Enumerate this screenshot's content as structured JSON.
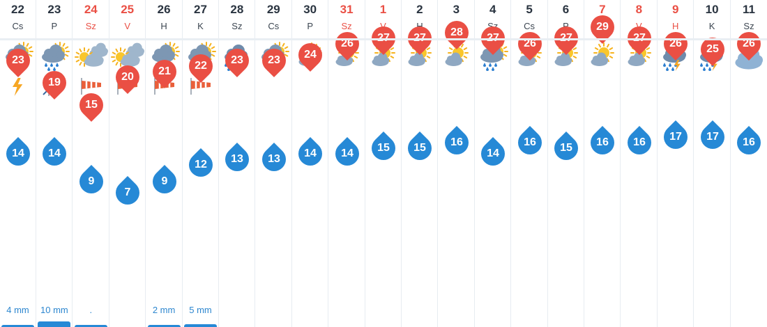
{
  "colors": {
    "weekend": "#ea4f44",
    "max_pin": "#ea4f44",
    "min_pin": "#2689d6",
    "precip_text": "#2c86cf"
  },
  "days": [
    {
      "date": "22",
      "dow": "Cs",
      "weekend": false,
      "icon": "thunderstorm-icon",
      "extra": "lightning-icon",
      "max": "23",
      "min": "14",
      "precip": "4 mm",
      "precip_level": 0.15
    },
    {
      "date": "23",
      "dow": "P",
      "weekend": false,
      "icon": "thunderstorm-icon",
      "extra": "strong-wind-icon",
      "max": "19",
      "min": "14",
      "precip": "10 mm",
      "precip_level": 0.4
    },
    {
      "date": "24",
      "dow": "Sz",
      "weekend": true,
      "icon": "partly-cloudy-icon",
      "extra": "windsock-icon",
      "max": "15",
      "min": "9",
      "precip": ".",
      "precip_level": 0.04
    },
    {
      "date": "25",
      "dow": "V",
      "weekend": true,
      "icon": "partly-cloudy-icon",
      "extra": "windsock-icon",
      "max": "20",
      "min": "7",
      "precip": "",
      "precip_level": 0
    },
    {
      "date": "26",
      "dow": "H",
      "weekend": false,
      "icon": "rain-shower-icon",
      "extra": "windsock-icon",
      "max": "21",
      "min": "9",
      "precip": "2 mm",
      "precip_level": 0.1
    },
    {
      "date": "27",
      "dow": "K",
      "weekend": false,
      "icon": "rain-shower-icon",
      "extra": "windsock-icon",
      "max": "22",
      "min": "12",
      "precip": "5 mm",
      "precip_level": 0.2
    },
    {
      "date": "28",
      "dow": "Sz",
      "weekend": false,
      "icon": "thunder-cloud-icon",
      "extra": "",
      "max": "23",
      "min": "13",
      "precip": "",
      "precip_level": 0
    },
    {
      "date": "29",
      "dow": "Cs",
      "weekend": false,
      "icon": "rain-shower-icon",
      "extra": "",
      "max": "23",
      "min": "13",
      "precip": "",
      "precip_level": 0
    },
    {
      "date": "30",
      "dow": "P",
      "weekend": false,
      "icon": "sunny-cloud-icon",
      "extra": "",
      "max": "24",
      "min": "14",
      "precip": "",
      "precip_level": 0
    },
    {
      "date": "31",
      "dow": "Sz",
      "weekend": true,
      "icon": "sunny-cloud-icon",
      "extra": "",
      "max": "26",
      "min": "14",
      "precip": "",
      "precip_level": 0
    },
    {
      "date": "1",
      "dow": "V",
      "weekend": true,
      "icon": "sunny-cloud-icon",
      "extra": "",
      "max": "27",
      "min": "15",
      "precip": "",
      "precip_level": 0
    },
    {
      "date": "2",
      "dow": "H",
      "weekend": false,
      "icon": "sunny-cloud-icon",
      "extra": "",
      "max": "27",
      "min": "15",
      "precip": "",
      "precip_level": 0
    },
    {
      "date": "3",
      "dow": "K",
      "weekend": false,
      "icon": "sunny-cloud-icon",
      "extra": "",
      "max": "28",
      "min": "16",
      "precip": "",
      "precip_level": 0
    },
    {
      "date": "4",
      "dow": "Sz",
      "weekend": false,
      "icon": "rain-shower-icon",
      "extra": "",
      "max": "27",
      "min": "14",
      "precip": "",
      "precip_level": 0
    },
    {
      "date": "5",
      "dow": "Cs",
      "weekend": false,
      "icon": "sunny-cloud-icon",
      "extra": "",
      "max": "26",
      "min": "16",
      "precip": "",
      "precip_level": 0
    },
    {
      "date": "6",
      "dow": "P",
      "weekend": false,
      "icon": "sunny-cloud-icon",
      "extra": "",
      "max": "27",
      "min": "15",
      "precip": "",
      "precip_level": 0
    },
    {
      "date": "7",
      "dow": "Sz",
      "weekend": true,
      "icon": "sunny-cloud-icon",
      "extra": "",
      "max": "29",
      "min": "16",
      "precip": "",
      "precip_level": 0
    },
    {
      "date": "8",
      "dow": "V",
      "weekend": true,
      "icon": "sunny-cloud-icon",
      "extra": "",
      "max": "27",
      "min": "16",
      "precip": "",
      "precip_level": 0
    },
    {
      "date": "9",
      "dow": "H",
      "weekend": true,
      "icon": "thunder-cloud-icon",
      "extra": "",
      "max": "26",
      "min": "17",
      "precip": "",
      "precip_level": 0
    },
    {
      "date": "10",
      "dow": "K",
      "weekend": false,
      "icon": "thunder-cloud-icon",
      "extra": "",
      "max": "25",
      "min": "17",
      "precip": "",
      "precip_level": 0
    },
    {
      "date": "11",
      "dow": "Sz",
      "weekend": false,
      "icon": "cloud-icon",
      "extra": "",
      "max": "26",
      "min": "16",
      "precip": "",
      "precip_level": 0
    }
  ]
}
